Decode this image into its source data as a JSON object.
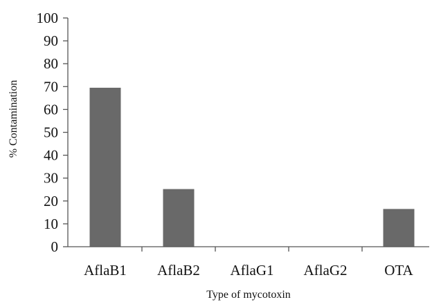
{
  "chart_data": {
    "type": "bar",
    "categories": [
      "AflaB1",
      "AflaB2",
      "AflaG1",
      "AflaG2",
      "OTA"
    ],
    "values": [
      69.5,
      25.2,
      0,
      0,
      16.5
    ],
    "title": "",
    "xlabel": "Type of mycotoxin",
    "ylabel": "% Contamination",
    "ylim": [
      0,
      100
    ],
    "yticks": [
      0,
      10,
      20,
      30,
      40,
      50,
      60,
      70,
      80,
      90,
      100
    ],
    "grid": false,
    "legend": "none",
    "colors": {
      "bar": "#696969",
      "axis": "#555555",
      "text": "#111111"
    }
  }
}
